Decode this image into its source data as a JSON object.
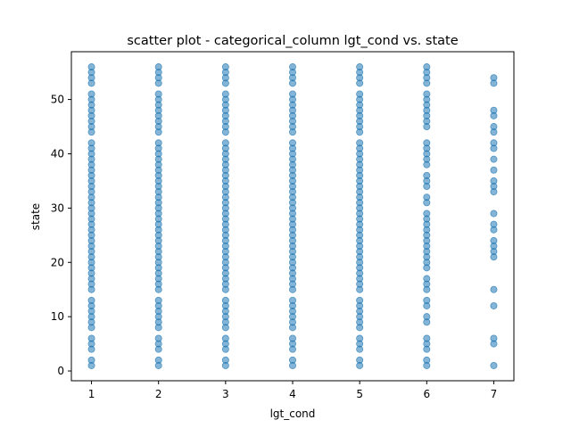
{
  "chart_data": {
    "type": "scatter",
    "title": "scatter plot - categorical_column lgt_cond vs. state",
    "xlabel": "lgt_cond",
    "ylabel": "state",
    "xlim": [
      0.7,
      7.3
    ],
    "ylim": [
      -1.8,
      58.8
    ],
    "xticks": [
      1,
      2,
      3,
      4,
      5,
      6,
      7
    ],
    "yticks": [
      0,
      10,
      20,
      30,
      40,
      50
    ],
    "grid": false,
    "legend": "none",
    "marker_color": "#1f77b4",
    "marker_alpha": 0.55,
    "series": [
      {
        "points": [
          {
            "x": 1,
            "y": [
              1,
              2,
              4,
              5,
              6,
              8,
              9,
              10,
              11,
              12,
              13,
              15,
              16,
              17,
              18,
              19,
              20,
              21,
              22,
              23,
              24,
              25,
              26,
              27,
              28,
              29,
              30,
              31,
              32,
              33,
              34,
              35,
              36,
              37,
              38,
              39,
              40,
              41,
              42,
              44,
              45,
              46,
              47,
              48,
              49,
              50,
              51,
              53,
              54,
              55,
              56
            ]
          },
          {
            "x": 2,
            "y": [
              1,
              2,
              4,
              5,
              6,
              8,
              9,
              10,
              11,
              12,
              13,
              15,
              16,
              17,
              18,
              19,
              20,
              21,
              22,
              23,
              24,
              25,
              26,
              27,
              28,
              29,
              30,
              31,
              32,
              33,
              34,
              35,
              36,
              37,
              38,
              39,
              40,
              41,
              42,
              44,
              45,
              46,
              47,
              48,
              49,
              50,
              51,
              53,
              54,
              55,
              56
            ]
          },
          {
            "x": 3,
            "y": [
              1,
              2,
              4,
              5,
              6,
              8,
              9,
              10,
              11,
              12,
              13,
              15,
              16,
              17,
              18,
              19,
              20,
              21,
              22,
              23,
              24,
              25,
              26,
              27,
              28,
              29,
              30,
              31,
              32,
              33,
              34,
              35,
              36,
              37,
              38,
              39,
              40,
              41,
              42,
              44,
              45,
              46,
              47,
              48,
              49,
              50,
              51,
              53,
              54,
              55,
              56
            ]
          },
          {
            "x": 4,
            "y": [
              1,
              2,
              4,
              5,
              6,
              8,
              9,
              10,
              11,
              12,
              13,
              15,
              16,
              17,
              18,
              19,
              20,
              21,
              22,
              23,
              24,
              25,
              26,
              27,
              28,
              29,
              30,
              31,
              32,
              33,
              34,
              35,
              36,
              37,
              38,
              39,
              40,
              41,
              42,
              44,
              45,
              46,
              47,
              48,
              49,
              50,
              51,
              53,
              54,
              55,
              56
            ]
          },
          {
            "x": 5,
            "y": [
              1,
              2,
              4,
              5,
              6,
              8,
              9,
              10,
              11,
              12,
              13,
              15,
              16,
              17,
              18,
              19,
              20,
              21,
              22,
              23,
              24,
              25,
              26,
              27,
              28,
              29,
              30,
              31,
              32,
              33,
              34,
              35,
              36,
              37,
              38,
              39,
              40,
              41,
              42,
              44,
              45,
              46,
              47,
              48,
              49,
              50,
              51,
              53,
              54,
              55,
              56
            ]
          },
          {
            "x": 6,
            "y": [
              1,
              2,
              4,
              5,
              6,
              9,
              10,
              12,
              13,
              15,
              16,
              17,
              19,
              20,
              21,
              22,
              23,
              24,
              25,
              26,
              27,
              28,
              29,
              31,
              32,
              34,
              35,
              36,
              38,
              39,
              40,
              41,
              42,
              45,
              46,
              47,
              48,
              49,
              50,
              51,
              53,
              54,
              55,
              56
            ]
          },
          {
            "x": 7,
            "y": [
              1,
              5,
              6,
              12,
              15,
              21,
              22,
              23,
              24,
              26,
              27,
              29,
              33,
              34,
              35,
              37,
              39,
              41,
              42,
              44,
              45,
              47,
              48,
              53,
              54
            ]
          }
        ]
      }
    ]
  }
}
